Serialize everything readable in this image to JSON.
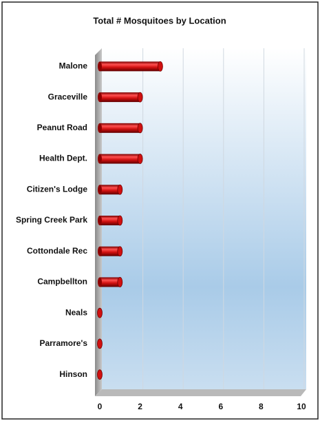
{
  "chart_data": {
    "type": "bar",
    "orientation": "horizontal",
    "title": "Total # Mosquitoes by Location",
    "categories": [
      "Malone",
      "Graceville",
      "Peanut Road",
      "Health Dept.",
      "Citizen's Lodge",
      "Spring Creek Park",
      "Cottondale Rec",
      "Campbellton",
      "Neals",
      "Parramore's",
      "Hinson"
    ],
    "values": [
      3,
      2,
      2,
      2,
      1,
      1,
      1,
      1,
      0,
      0,
      0
    ],
    "color": "#d01010",
    "xlim": [
      0,
      10
    ],
    "xticks": [
      0,
      2,
      4,
      6,
      8,
      10
    ],
    "grid": true
  }
}
